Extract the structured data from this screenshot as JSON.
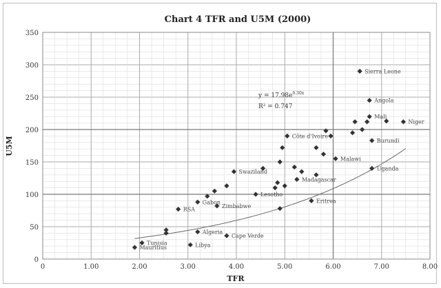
{
  "chart_data": {
    "type": "scatter",
    "title": "Chart  4 TFR and U5M (2000)",
    "xlabel": "TFR",
    "ylabel": "U5M",
    "xlim": [
      0,
      8
    ],
    "ylim": [
      0,
      350
    ],
    "x_ticks": [
      "0",
      "1.00",
      "2.00",
      "3.00",
      "4.00",
      "5.00",
      "6.00",
      "7.00",
      "8.00"
    ],
    "y_ticks": [
      "0",
      "50",
      "100",
      "150",
      "200",
      "250",
      "300",
      "350"
    ],
    "grid": true,
    "trendline": {
      "equation": "y = 17.98e",
      "equation_sup": "0.30x",
      "r2": "R² = 0.747",
      "a": 17.98,
      "b": 0.3
    },
    "points": [
      {
        "x": 1.9,
        "y": 18,
        "label": "Mauritius"
      },
      {
        "x": 2.05,
        "y": 25,
        "label": "Tunisia"
      },
      {
        "x": 2.55,
        "y": 45,
        "label": ""
      },
      {
        "x": 2.55,
        "y": 40,
        "label": ""
      },
      {
        "x": 2.8,
        "y": 77,
        "label": "RSA"
      },
      {
        "x": 3.05,
        "y": 22,
        "label": "Libya"
      },
      {
        "x": 3.2,
        "y": 42,
        "label": "Algeria"
      },
      {
        "x": 3.2,
        "y": 88,
        "label": "Gabon"
      },
      {
        "x": 3.4,
        "y": 97,
        "label": ""
      },
      {
        "x": 3.55,
        "y": 105,
        "label": ""
      },
      {
        "x": 3.6,
        "y": 82,
        "label": "Zimbabwe"
      },
      {
        "x": 3.8,
        "y": 113,
        "label": ""
      },
      {
        "x": 3.8,
        "y": 36,
        "label": "Cape Verde"
      },
      {
        "x": 3.95,
        "y": 135,
        "label": "Swaziland"
      },
      {
        "x": 4.4,
        "y": 100,
        "label": "Lesotho"
      },
      {
        "x": 4.55,
        "y": 140,
        "label": ""
      },
      {
        "x": 4.8,
        "y": 110,
        "label": ""
      },
      {
        "x": 4.85,
        "y": 118,
        "label": ""
      },
      {
        "x": 4.9,
        "y": 78,
        "label": ""
      },
      {
        "x": 4.9,
        "y": 150,
        "label": ""
      },
      {
        "x": 4.95,
        "y": 172,
        "label": ""
      },
      {
        "x": 5.0,
        "y": 113,
        "label": ""
      },
      {
        "x": 5.05,
        "y": 190,
        "label": "Côte d'Ivoire"
      },
      {
        "x": 5.2,
        "y": 142,
        "label": ""
      },
      {
        "x": 5.25,
        "y": 123,
        "label": "Madagascar"
      },
      {
        "x": 5.35,
        "y": 135,
        "label": ""
      },
      {
        "x": 5.55,
        "y": 90,
        "label": "Eritrea"
      },
      {
        "x": 5.65,
        "y": 130,
        "label": ""
      },
      {
        "x": 5.65,
        "y": 172,
        "label": ""
      },
      {
        "x": 5.8,
        "y": 162,
        "label": ""
      },
      {
        "x": 5.85,
        "y": 198,
        "label": ""
      },
      {
        "x": 5.95,
        "y": 190,
        "label": ""
      },
      {
        "x": 6.05,
        "y": 155,
        "label": "Malawi"
      },
      {
        "x": 6.4,
        "y": 195,
        "label": ""
      },
      {
        "x": 6.45,
        "y": 212,
        "label": ""
      },
      {
        "x": 6.55,
        "y": 290,
        "label": "Sierra Leone"
      },
      {
        "x": 6.6,
        "y": 200,
        "label": ""
      },
      {
        "x": 6.75,
        "y": 245,
        "label": "Angola"
      },
      {
        "x": 6.75,
        "y": 220,
        "label": "Mali"
      },
      {
        "x": 6.7,
        "y": 212,
        "label": ""
      },
      {
        "x": 6.8,
        "y": 183,
        "label": "Burundi"
      },
      {
        "x": 6.8,
        "y": 140,
        "label": "Uganda"
      },
      {
        "x": 7.1,
        "y": 213,
        "label": ""
      },
      {
        "x": 7.45,
        "y": 212,
        "label": "Niger"
      }
    ]
  }
}
